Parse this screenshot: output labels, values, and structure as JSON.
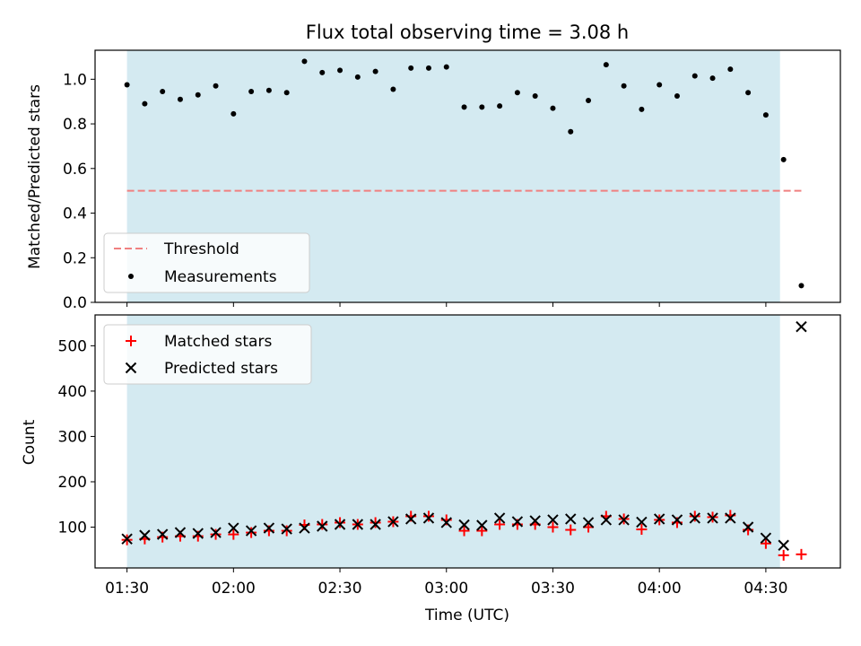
{
  "chart_data": [
    {
      "type": "scatter",
      "title": "Flux total observing time = 3.08 h",
      "ylabel": "Matched/Predicted stars",
      "ylim": [
        0,
        1.13
      ],
      "yticks": [
        0.0,
        0.2,
        0.4,
        0.6,
        0.8,
        1.0
      ],
      "ytick_labels": [
        "0.0",
        "0.2",
        "0.4",
        "0.6",
        "0.8",
        "1.0"
      ],
      "shaded_interval": [
        "01:30",
        "04:34"
      ],
      "shade_color": "#d4eaf1",
      "legend_position": "lower-left",
      "series": [
        {
          "name": "Threshold",
          "style": "dashed-line",
          "color": "#f08080",
          "x": [
            "01:30",
            "04:40"
          ],
          "y": [
            0.5,
            0.5
          ]
        },
        {
          "name": "Measurements",
          "style": "dot",
          "color": "#000000",
          "x": [
            "01:30",
            "01:35",
            "01:40",
            "01:45",
            "01:50",
            "01:55",
            "02:00",
            "02:05",
            "02:10",
            "02:15",
            "02:20",
            "02:25",
            "02:30",
            "02:35",
            "02:40",
            "02:45",
            "02:50",
            "02:55",
            "03:00",
            "03:05",
            "03:10",
            "03:15",
            "03:20",
            "03:25",
            "03:30",
            "03:35",
            "03:40",
            "03:45",
            "03:50",
            "03:55",
            "04:00",
            "04:05",
            "04:10",
            "04:15",
            "04:20",
            "04:25",
            "04:30",
            "04:35",
            "04:40"
          ],
          "y": [
            0.975,
            0.89,
            0.945,
            0.91,
            0.93,
            0.97,
            0.845,
            0.945,
            0.95,
            0.94,
            1.08,
            1.03,
            1.04,
            1.01,
            1.035,
            0.955,
            1.05,
            1.05,
            1.055,
            0.875,
            0.875,
            0.88,
            0.94,
            0.925,
            0.87,
            0.765,
            0.905,
            1.065,
            0.97,
            0.865,
            0.975,
            0.925,
            1.015,
            1.005,
            1.045,
            0.94,
            0.84,
            0.64,
            0.075
          ]
        }
      ]
    },
    {
      "type": "scatter",
      "xlabel": "Time (UTC)",
      "ylabel": "Count",
      "ylim": [
        10,
        568
      ],
      "yticks": [
        100,
        200,
        300,
        400,
        500
      ],
      "ytick_labels": [
        "100",
        "200",
        "300",
        "400",
        "500"
      ],
      "xticks": [
        "01:30",
        "02:00",
        "02:30",
        "03:00",
        "03:30",
        "04:00",
        "04:30"
      ],
      "xlim": [
        "01:21",
        "04:51"
      ],
      "shaded_interval": [
        "01:30",
        "04:34"
      ],
      "shade_color": "#d4eaf1",
      "legend_position": "upper-left",
      "x": [
        "01:30",
        "01:35",
        "01:40",
        "01:45",
        "01:50",
        "01:55",
        "02:00",
        "02:05",
        "02:10",
        "02:15",
        "02:20",
        "02:25",
        "02:30",
        "02:35",
        "02:40",
        "02:45",
        "02:50",
        "02:55",
        "03:00",
        "03:05",
        "03:10",
        "03:15",
        "03:20",
        "03:25",
        "03:30",
        "03:35",
        "03:40",
        "03:45",
        "03:50",
        "03:55",
        "04:00",
        "04:05",
        "04:10",
        "04:15",
        "04:20",
        "04:25",
        "04:30",
        "04:35",
        "04:40"
      ],
      "series": [
        {
          "name": "Matched stars",
          "marker": "plus",
          "color": "#ff0000",
          "y": [
            72,
            74,
            78,
            80,
            80,
            84,
            84,
            88,
            92,
            92,
            105,
            106,
            110,
            106,
            110,
            112,
            124,
            124,
            116,
            92,
            92,
            106,
            106,
            106,
            100,
            94,
            100,
            124,
            118,
            95,
            116,
            110,
            124,
            122,
            126,
            94,
            64,
            38,
            40
          ]
        },
        {
          "name": "Predicted stars",
          "marker": "x",
          "color": "#000000",
          "y": [
            74,
            82,
            84,
            88,
            86,
            88,
            98,
            92,
            98,
            96,
            98,
            102,
            106,
            106,
            106,
            112,
            118,
            120,
            110,
            105,
            104,
            120,
            112,
            114,
            116,
            118,
            110,
            116,
            116,
            111,
            118,
            116,
            120,
            120,
            120,
            100,
            76,
            60,
            542
          ]
        }
      ]
    }
  ]
}
